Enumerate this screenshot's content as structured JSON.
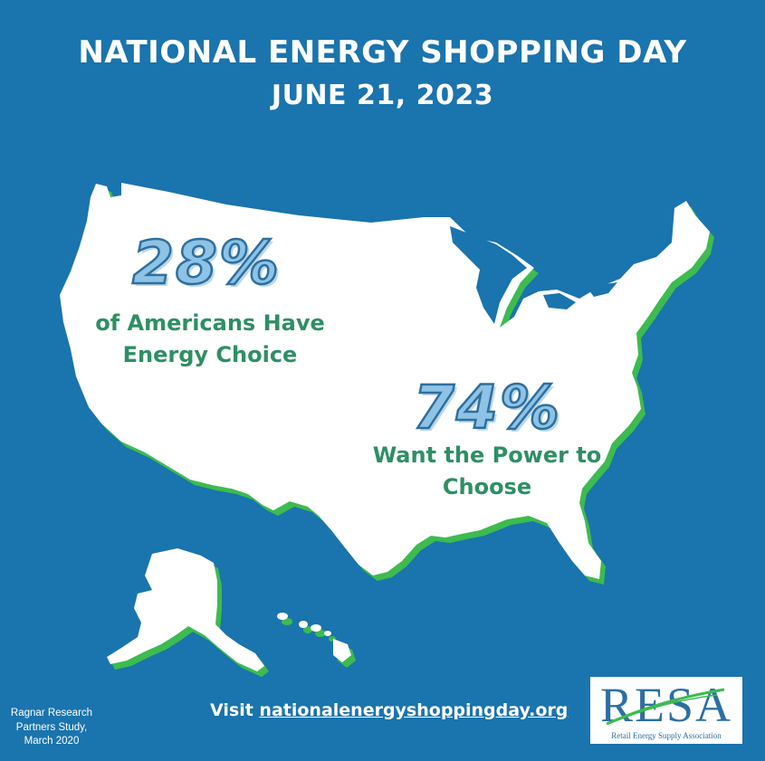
{
  "header": {
    "title": "NATIONAL ENERGY SHOPPING DAY",
    "date": "JUNE 21, 2023"
  },
  "stats": [
    {
      "value": "28%",
      "caption_line1": "of Americans Have",
      "caption_line2": "Energy Choice"
    },
    {
      "value": "74%",
      "caption_line1": "Want the Power to",
      "caption_line2": "Choose"
    }
  ],
  "footer": {
    "source_line1": "Ragnar Research",
    "source_line2": "Partners Study,",
    "source_line3": "March 2020",
    "visit_label": "Visit",
    "visit_link": "nationalenergyshoppingday.org"
  },
  "logo": {
    "wordmark": "RESA",
    "tagline": "Retail Energy Supply Association"
  },
  "colors": {
    "background": "#1a74ad",
    "map_fill": "#ffffff",
    "map_outline": "#3dbb4f",
    "caption": "#2e8f64",
    "stat_number": "#8ec3e6"
  }
}
